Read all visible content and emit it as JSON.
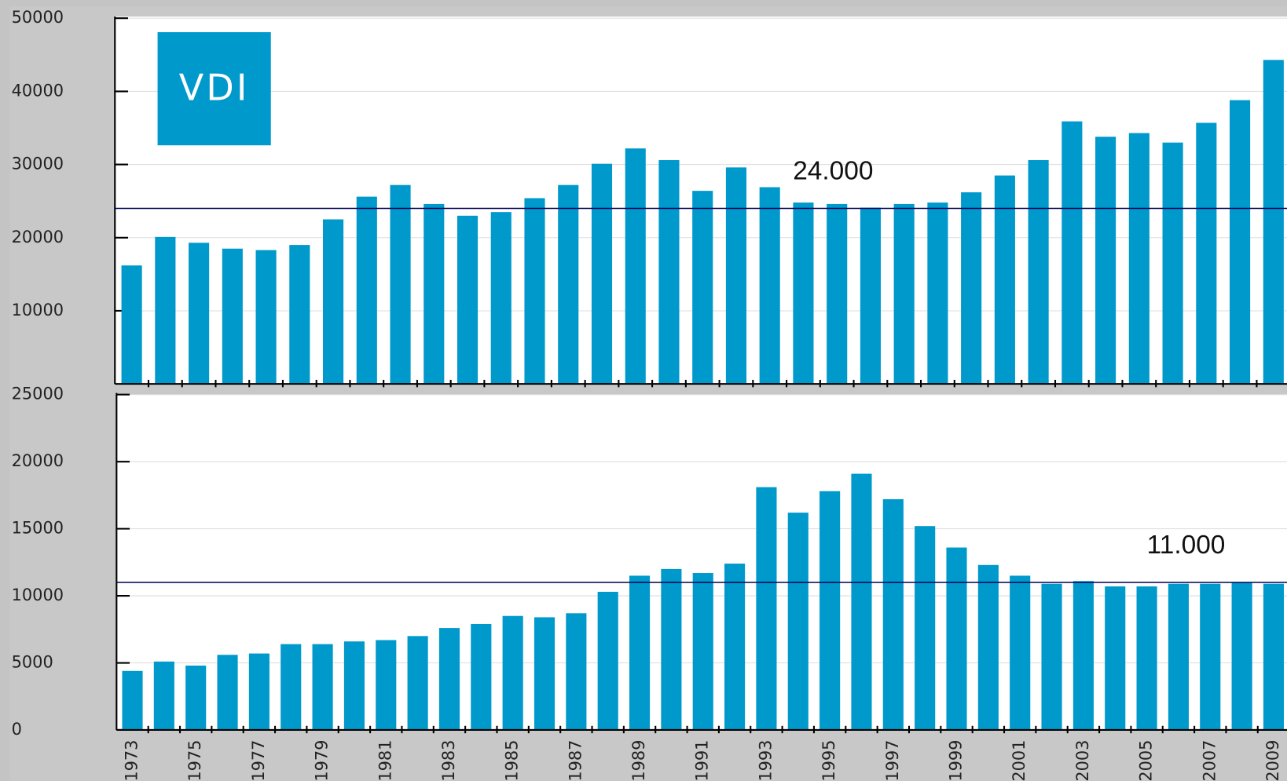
{
  "logo": "VDI",
  "chart_data": [
    {
      "type": "bar",
      "color": "#0099cc",
      "categories": [
        null,
        null,
        null,
        null,
        null,
        null,
        null,
        null,
        null,
        null,
        null,
        null,
        null,
        null,
        null,
        null,
        null,
        null,
        null,
        null,
        null,
        null,
        null,
        null,
        null,
        null,
        null,
        null,
        null,
        null,
        null,
        null,
        null,
        null,
        null
      ],
      "values": [
        16200,
        20100,
        19300,
        18500,
        18300,
        19000,
        22500,
        25600,
        27200,
        24600,
        23000,
        23500,
        25400,
        27200,
        30100,
        32200,
        30600,
        26400,
        29600,
        26900,
        24800,
        24600,
        24100,
        24600,
        24800,
        26200,
        28500,
        30600,
        35900,
        33800,
        34300,
        33000,
        35700,
        38800,
        44300
      ],
      "ylim": [
        0,
        50000
      ],
      "yticks": [
        10000,
        20000,
        30000,
        40000,
        50000
      ],
      "grid": true,
      "reference": {
        "value": 24000,
        "label": "24.000"
      }
    },
    {
      "type": "bar",
      "color": "#0099cc",
      "categories": [
        "1973",
        null,
        "1975",
        null,
        "1977",
        null,
        "1979",
        null,
        "1981",
        null,
        "1983",
        null,
        "1985",
        null,
        "1987",
        null,
        "1989",
        null,
        "1991",
        null,
        "1993",
        null,
        "1995",
        null,
        "1997",
        null,
        "1999",
        null,
        "2001",
        null,
        "2003",
        null,
        "2005",
        null,
        "2007",
        null,
        "2009"
      ],
      "values": [
        4400,
        5100,
        4800,
        5600,
        5700,
        6400,
        6400,
        6600,
        6700,
        7000,
        7600,
        7900,
        8500,
        8400,
        8700,
        10300,
        11500,
        12000,
        11700,
        12400,
        18100,
        16200,
        17800,
        19100,
        17200,
        15200,
        13600,
        12300,
        11500,
        10900,
        11100,
        10700,
        10700,
        10900,
        10900,
        11000,
        10900
      ],
      "ylim": [
        0,
        25000
      ],
      "yticks": [
        0,
        5000,
        10000,
        15000,
        20000,
        25000
      ],
      "grid": true,
      "reference": {
        "value": 11000,
        "label": "11.000"
      }
    }
  ]
}
